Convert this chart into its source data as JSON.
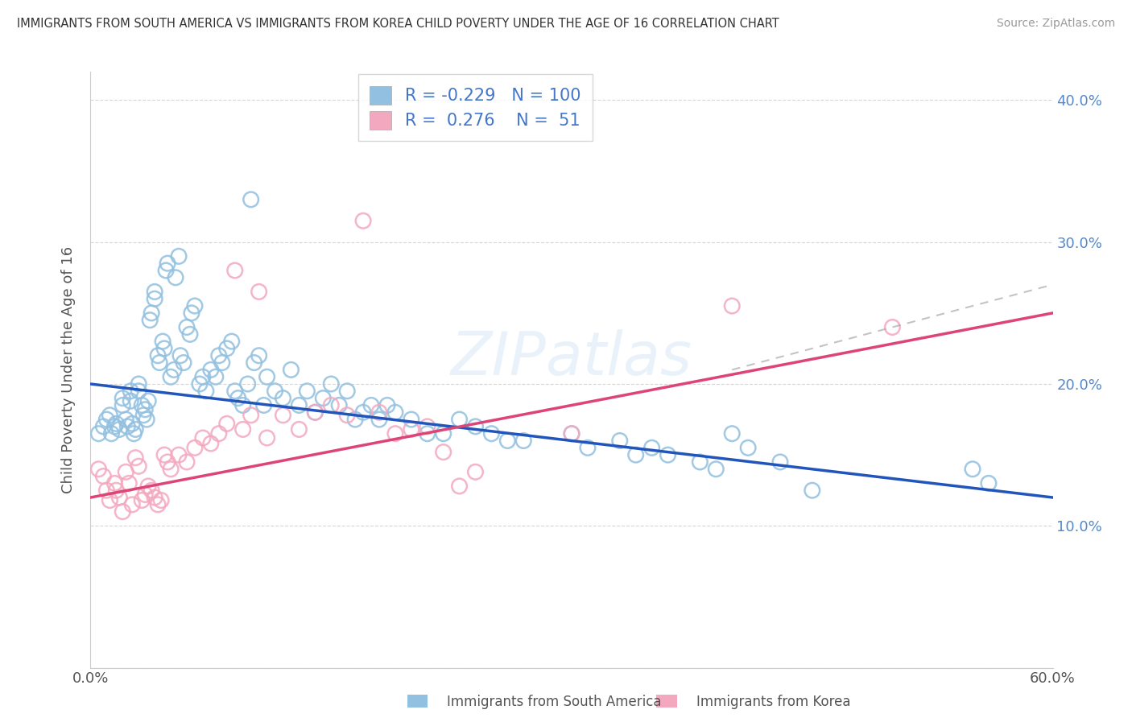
{
  "title": "IMMIGRANTS FROM SOUTH AMERICA VS IMMIGRANTS FROM KOREA CHILD POVERTY UNDER THE AGE OF 16 CORRELATION CHART",
  "source": "Source: ZipAtlas.com",
  "ylabel": "Child Poverty Under the Age of 16",
  "xlim": [
    0.0,
    0.6
  ],
  "ylim": [
    0.0,
    0.42
  ],
  "r1": "-0.229",
  "n1": "100",
  "r2": "0.276",
  "n2": "51",
  "color1": "#92c0e0",
  "color2": "#f4a8c0",
  "line_color1": "#2255bb",
  "line_color2": "#dd4477",
  "legend_label1": "Immigrants from South America",
  "legend_label2": "Immigrants from Korea",
  "sa_x": [
    0.005,
    0.008,
    0.01,
    0.012,
    0.013,
    0.015,
    0.016,
    0.018,
    0.02,
    0.02,
    0.022,
    0.023,
    0.025,
    0.025,
    0.026,
    0.027,
    0.028,
    0.03,
    0.03,
    0.032,
    0.033,
    0.034,
    0.035,
    0.036,
    0.037,
    0.038,
    0.04,
    0.04,
    0.042,
    0.043,
    0.045,
    0.046,
    0.047,
    0.048,
    0.05,
    0.052,
    0.053,
    0.055,
    0.056,
    0.058,
    0.06,
    0.062,
    0.063,
    0.065,
    0.068,
    0.07,
    0.072,
    0.075,
    0.078,
    0.08,
    0.082,
    0.085,
    0.088,
    0.09,
    0.092,
    0.095,
    0.098,
    0.1,
    0.102,
    0.105,
    0.108,
    0.11,
    0.115,
    0.12,
    0.125,
    0.13,
    0.135,
    0.14,
    0.145,
    0.15,
    0.155,
    0.16,
    0.165,
    0.17,
    0.175,
    0.18,
    0.185,
    0.19,
    0.2,
    0.21,
    0.22,
    0.23,
    0.24,
    0.25,
    0.26,
    0.27,
    0.3,
    0.31,
    0.33,
    0.34,
    0.35,
    0.36,
    0.38,
    0.39,
    0.4,
    0.41,
    0.43,
    0.45,
    0.55,
    0.56
  ],
  "sa_y": [
    0.165,
    0.17,
    0.175,
    0.178,
    0.165,
    0.17,
    0.172,
    0.168,
    0.19,
    0.185,
    0.175,
    0.17,
    0.195,
    0.188,
    0.172,
    0.165,
    0.168,
    0.2,
    0.195,
    0.185,
    0.178,
    0.182,
    0.175,
    0.188,
    0.245,
    0.25,
    0.26,
    0.265,
    0.22,
    0.215,
    0.23,
    0.225,
    0.28,
    0.285,
    0.205,
    0.21,
    0.275,
    0.29,
    0.22,
    0.215,
    0.24,
    0.235,
    0.25,
    0.255,
    0.2,
    0.205,
    0.195,
    0.21,
    0.205,
    0.22,
    0.215,
    0.225,
    0.23,
    0.195,
    0.19,
    0.185,
    0.2,
    0.33,
    0.215,
    0.22,
    0.185,
    0.205,
    0.195,
    0.19,
    0.21,
    0.185,
    0.195,
    0.18,
    0.19,
    0.2,
    0.185,
    0.195,
    0.175,
    0.18,
    0.185,
    0.175,
    0.185,
    0.18,
    0.175,
    0.165,
    0.165,
    0.175,
    0.17,
    0.165,
    0.16,
    0.16,
    0.165,
    0.155,
    0.16,
    0.15,
    0.155,
    0.15,
    0.145,
    0.14,
    0.165,
    0.155,
    0.145,
    0.125,
    0.14,
    0.13
  ],
  "ko_x": [
    0.005,
    0.008,
    0.01,
    0.012,
    0.015,
    0.016,
    0.018,
    0.02,
    0.022,
    0.024,
    0.026,
    0.028,
    0.03,
    0.032,
    0.034,
    0.036,
    0.038,
    0.04,
    0.042,
    0.044,
    0.046,
    0.048,
    0.05,
    0.055,
    0.06,
    0.065,
    0.07,
    0.075,
    0.08,
    0.085,
    0.09,
    0.095,
    0.1,
    0.105,
    0.11,
    0.12,
    0.13,
    0.14,
    0.15,
    0.16,
    0.17,
    0.18,
    0.19,
    0.2,
    0.21,
    0.22,
    0.23,
    0.24,
    0.3,
    0.4,
    0.5
  ],
  "ko_y": [
    0.14,
    0.135,
    0.125,
    0.118,
    0.13,
    0.125,
    0.12,
    0.11,
    0.138,
    0.13,
    0.115,
    0.148,
    0.142,
    0.118,
    0.122,
    0.128,
    0.125,
    0.12,
    0.115,
    0.118,
    0.15,
    0.145,
    0.14,
    0.15,
    0.145,
    0.155,
    0.162,
    0.158,
    0.165,
    0.172,
    0.28,
    0.168,
    0.178,
    0.265,
    0.162,
    0.178,
    0.168,
    0.18,
    0.185,
    0.178,
    0.315,
    0.18,
    0.165,
    0.168,
    0.17,
    0.152,
    0.128,
    0.138,
    0.165,
    0.255,
    0.24
  ]
}
